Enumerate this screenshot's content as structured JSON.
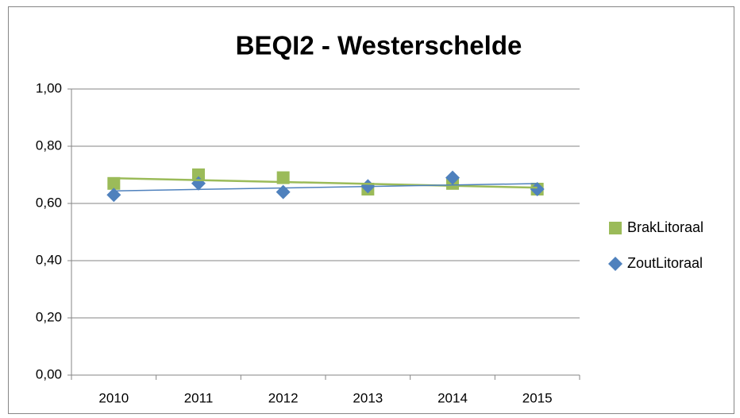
{
  "chart_data": {
    "type": "line",
    "title": "BEQI2 - Westerschelde",
    "categories": [
      "2010",
      "2011",
      "2012",
      "2013",
      "2014",
      "2015"
    ],
    "series": [
      {
        "name": "BrakLitoraal",
        "color": "#9bbb59",
        "marker": "square",
        "values": [
          0.67,
          0.7,
          0.69,
          0.65,
          0.67,
          0.65
        ]
      },
      {
        "name": "ZoutLitoraal",
        "color": "#4f81bd",
        "marker": "diamond",
        "values": [
          0.63,
          0.67,
          0.64,
          0.66,
          0.69,
          0.65
        ]
      }
    ],
    "trendline": true,
    "ylim": [
      0,
      1
    ],
    "yticks": [
      {
        "value": 0,
        "label": "0,00"
      },
      {
        "value": 0.2,
        "label": "0,20"
      },
      {
        "value": 0.4,
        "label": "0,40"
      },
      {
        "value": 0.6,
        "label": "0,60"
      },
      {
        "value": 0.8,
        "label": "0,80"
      },
      {
        "value": 1,
        "label": "1,00"
      }
    ],
    "grid": true,
    "legend": "right"
  }
}
